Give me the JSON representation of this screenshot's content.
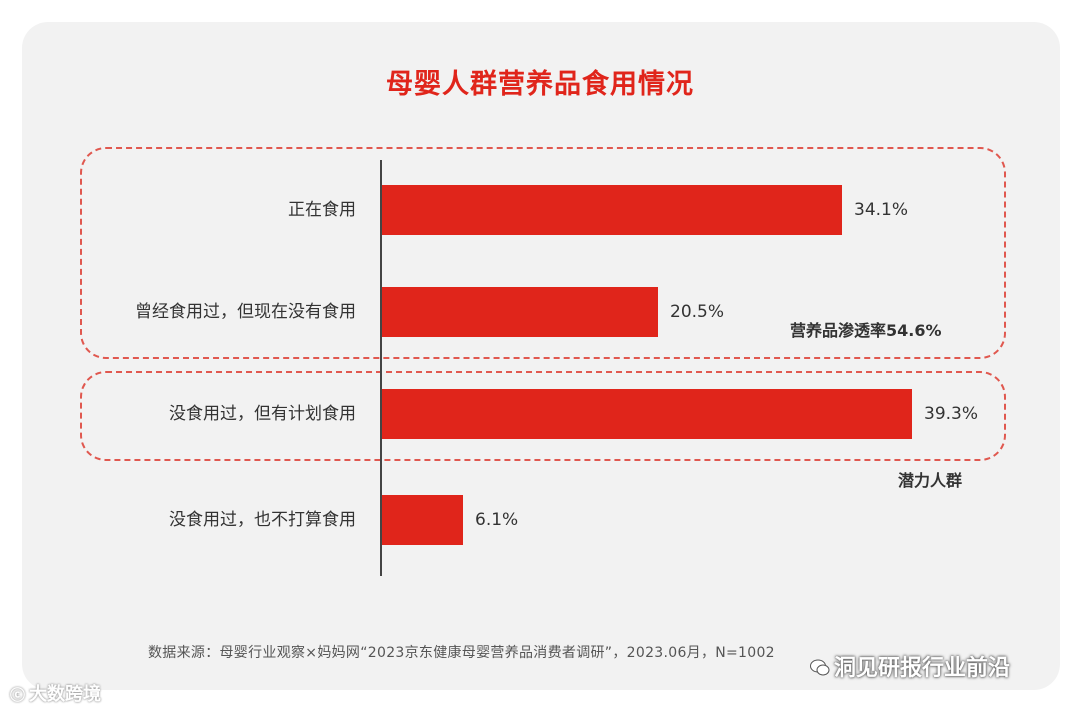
{
  "title": "母婴人群营养品食用情况",
  "chart_data": {
    "type": "bar",
    "orientation": "horizontal",
    "categories": [
      "正在食用",
      "曾经食用过，但现在没有食用",
      "没食用过，但有计划食用",
      "没食用过，也不打算食用"
    ],
    "values": [
      34.1,
      20.5,
      39.3,
      6.1
    ],
    "value_labels": [
      "34.1%",
      "20.5%",
      "39.3%",
      "6.1%"
    ],
    "xlim": [
      0,
      40
    ],
    "bar_color": "#e0251b"
  },
  "annotations": {
    "penetration": "营养品渗透率54.6%",
    "potential": "潜力人群"
  },
  "source": "数据来源：母婴行业观察×妈妈网“2023京东健康母婴营养品消费者调研”，2023.06月，N=1002",
  "watermarks": {
    "left": "大数跨境",
    "right": "洞见研报行业前沿"
  }
}
